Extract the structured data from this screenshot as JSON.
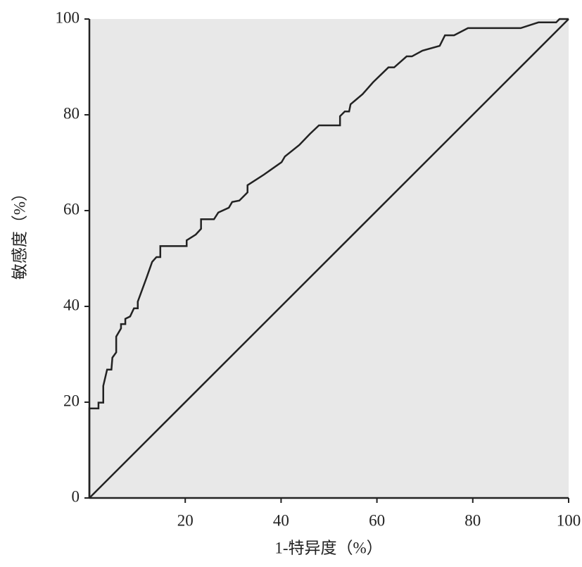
{
  "chart_data": {
    "type": "line",
    "x_label": "1-特异度（%）",
    "y_label": "敏感度（%）",
    "series": [
      {
        "color": "#222222",
        "x": [
          0,
          0,
          1.9,
          1.9,
          2.9,
          2.9,
          3.7,
          4.6,
          4.8,
          5.6,
          5.6,
          6.6,
          6.6,
          7.5,
          7.5,
          8.5,
          9.3,
          10.1,
          10.1,
          11.9,
          13.1,
          14,
          14.8,
          14.8,
          20.3,
          20.3,
          22.2,
          23.3,
          23.3,
          26,
          26.9,
          29.1,
          29.8,
          31.3,
          33,
          33,
          36.4,
          40.1,
          40.8,
          43.8,
          46,
          47.9,
          52.3,
          52.3,
          53.3,
          54.2,
          54.5,
          57,
          59.2,
          62.4,
          63.6,
          66.2,
          67.3,
          69.5,
          73.1,
          74.2,
          76.1,
          79,
          90,
          93.7,
          97.4,
          98.1,
          100
        ],
        "values": [
          0,
          18.7,
          18.7,
          19.9,
          19.9,
          23.4,
          26.8,
          26.8,
          29.3,
          30.4,
          33.7,
          35.4,
          36.3,
          36.3,
          37.4,
          37.9,
          39.6,
          39.6,
          41,
          45.9,
          49.3,
          50.3,
          50.3,
          52.6,
          52.6,
          53.8,
          55,
          56.2,
          58.2,
          58.2,
          59.6,
          60.6,
          61.8,
          62.1,
          63.8,
          65.3,
          67.5,
          70.1,
          71.3,
          73.7,
          76,
          77.8,
          77.8,
          79.7,
          80.7,
          80.7,
          82.2,
          84.3,
          86.8,
          89.9,
          89.9,
          92.2,
          92.2,
          93.4,
          94.4,
          96.6,
          96.6,
          98.1,
          98.1,
          99.3,
          99.3,
          100,
          100
        ]
      },
      {
        "color": "#222222",
        "x": [
          0,
          100
        ],
        "values": [
          0,
          100
        ]
      }
    ],
    "xlim": [
      0,
      100
    ],
    "xticks": [
      20,
      40,
      60,
      80,
      100
    ],
    "ylim": [
      0,
      100
    ],
    "yticks": [
      0,
      20,
      40,
      60,
      80,
      100
    ],
    "background": "#e8e8e8"
  }
}
